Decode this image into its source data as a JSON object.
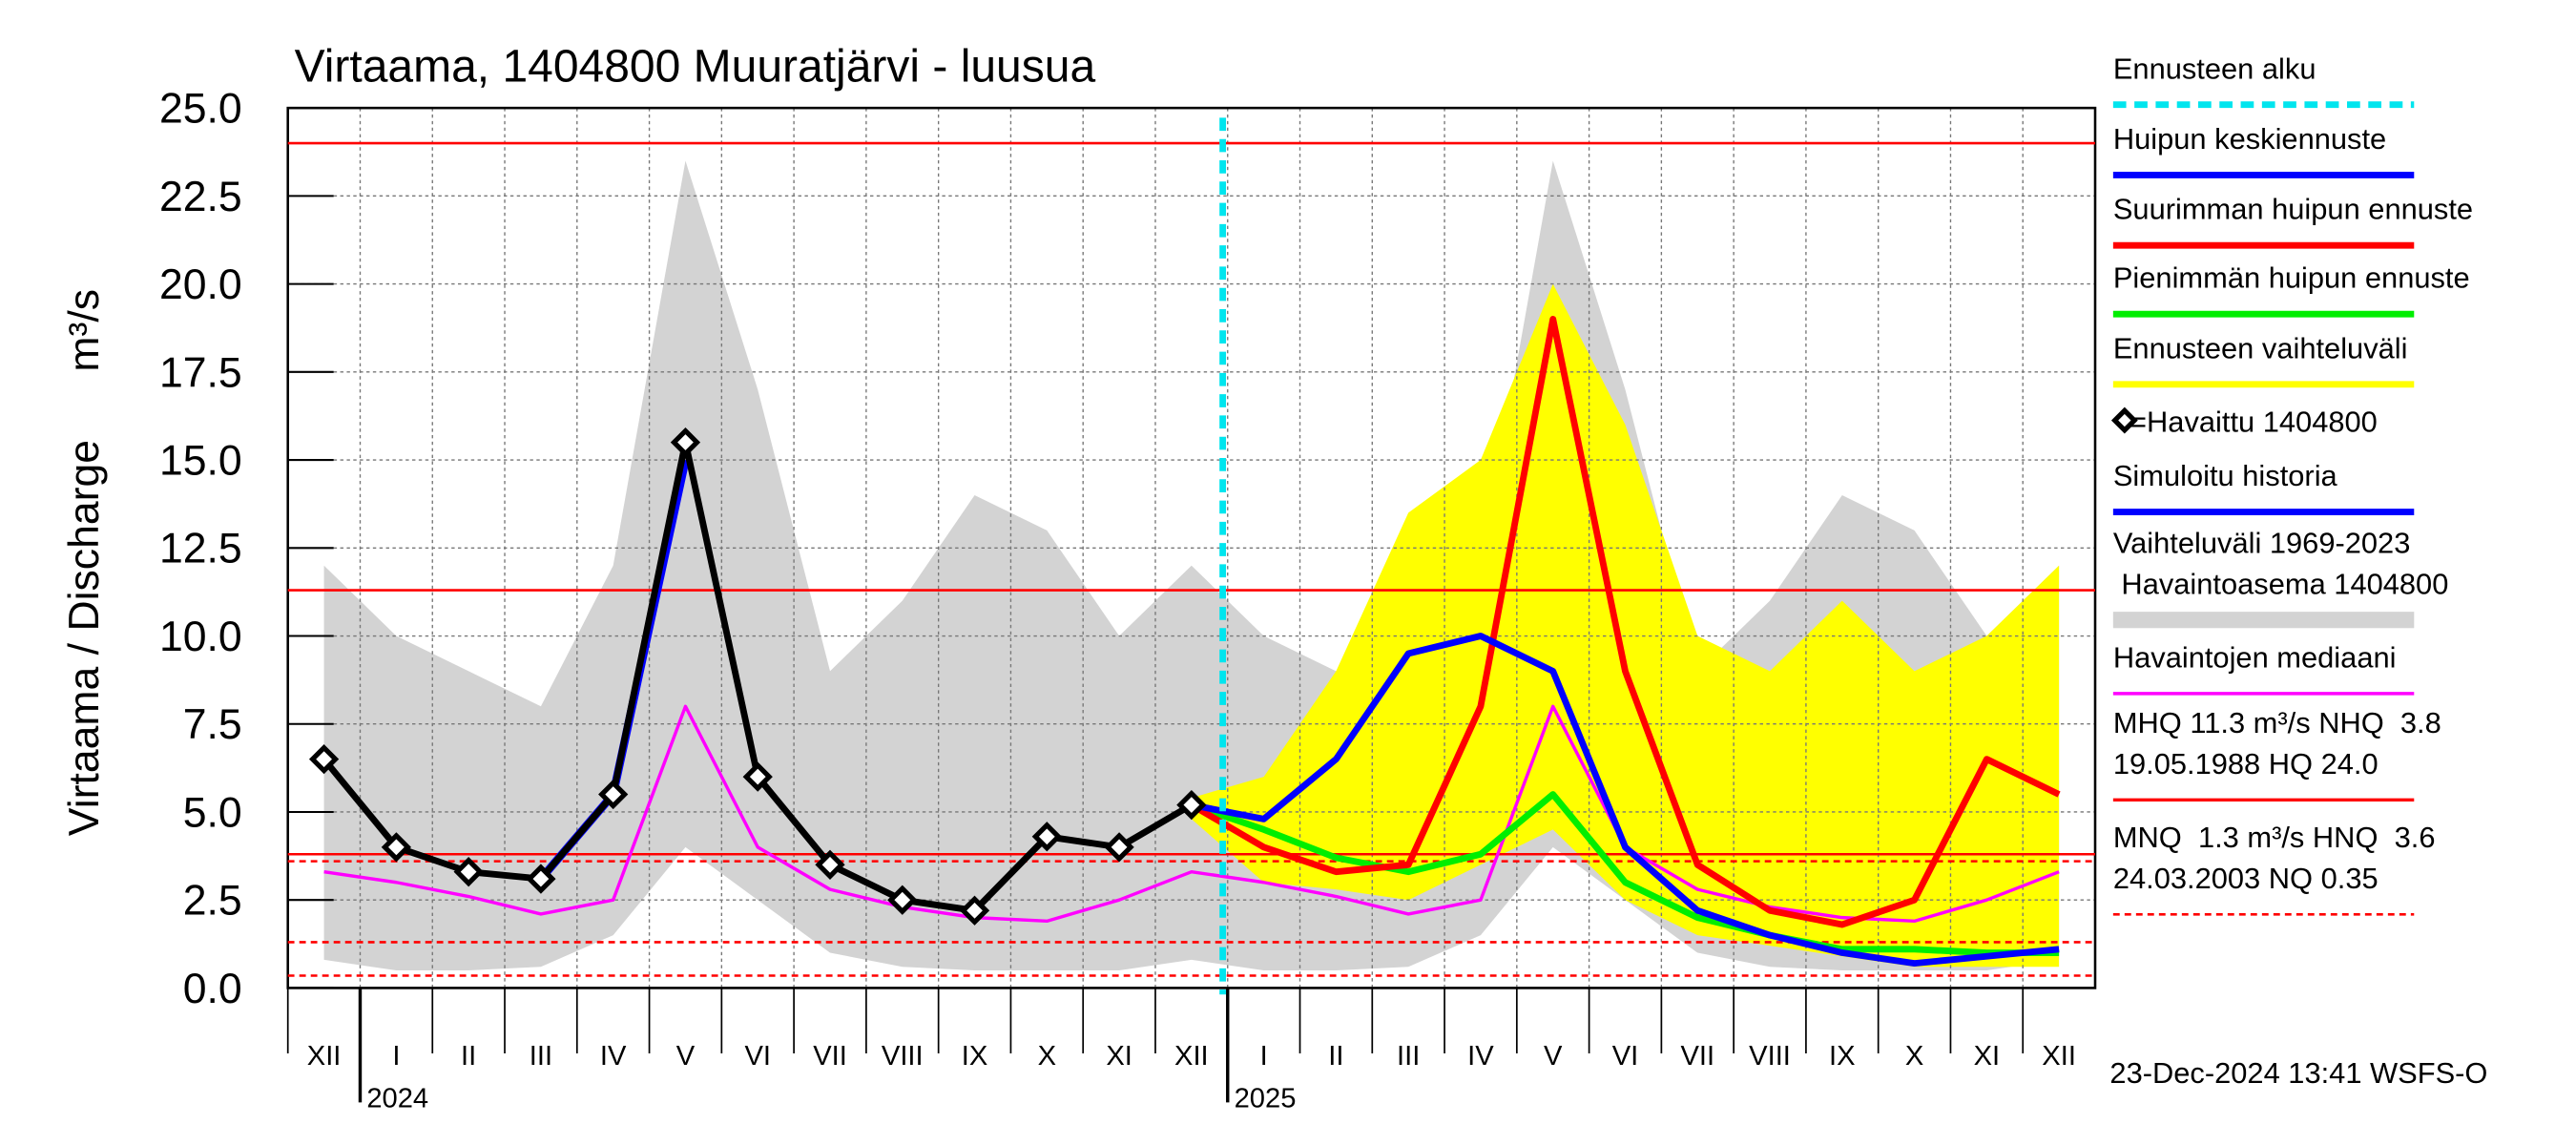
{
  "chart_data": {
    "type": "line",
    "title": "Virtaama, 1404800 Muuratjärvi - luusua",
    "y_label": "Virtaama / Discharge",
    "y_unit": "m³/s",
    "timestamp": "23-Dec-2024 13:41 WSFS-O",
    "categories": [
      "XII",
      "I",
      "II",
      "III",
      "IV",
      "V",
      "VI",
      "VII",
      "VIII",
      "IX",
      "X",
      "XI",
      "XII",
      "I",
      "II",
      "III",
      "IV",
      "V",
      "VI",
      "VII",
      "VIII",
      "IX",
      "X",
      "XI",
      "XII"
    ],
    "years": [
      "2024",
      "2025"
    ],
    "ylim": [
      0,
      25
    ],
    "yticks": [
      {
        "value": 0,
        "label": "0.0"
      },
      2.5,
      {
        "value": 5,
        "label": "5.0"
      },
      7.5,
      {
        "value": 10,
        "label": "10.0"
      },
      12.5,
      {
        "value": 15,
        "label": "15.0"
      },
      17.5,
      {
        "value": 20,
        "label": "20.0"
      },
      22.5,
      {
        "value": 25,
        "label": "25.0"
      }
    ],
    "grid": true,
    "legend_position": "right",
    "forecast_start": {
      "name": "Ennusteen alku",
      "color": "#00e5ee"
    },
    "bands": [
      {
        "name": "Ennusteen vaihteluväli",
        "color": "#ffff00",
        "low": [
          null,
          null,
          null,
          null,
          null,
          null,
          null,
          null,
          null,
          null,
          null,
          null,
          4.8,
          3.0,
          2.8,
          2.5,
          3.5,
          4.5,
          2.5,
          1.5,
          1.2,
          0.9,
          0.6,
          0.6,
          0.6
        ],
        "high": [
          null,
          null,
          null,
          null,
          null,
          null,
          null,
          null,
          null,
          null,
          null,
          null,
          5.4,
          6.0,
          9.0,
          13.5,
          15.0,
          20.0,
          16.0,
          10.0,
          9.0,
          11.0,
          9.0,
          10.0,
          12.0
        ]
      },
      {
        "name": [
          "Vaihteluväli 1969-2023",
          " Havaintoasema 1404800"
        ],
        "color": "#d3d3d3",
        "low": [
          0.8,
          0.5,
          0.5,
          0.6,
          1.5,
          4.0,
          2.5,
          1.0,
          0.6,
          0.5,
          0.5,
          0.5,
          0.8,
          0.5,
          0.5,
          0.6,
          1.5,
          4.0,
          2.5,
          1.0,
          0.6,
          0.5,
          0.5,
          0.5,
          0.8
        ],
        "high": [
          12,
          10,
          9,
          8,
          12,
          23.5,
          17,
          9,
          11,
          14,
          13,
          10,
          12,
          10,
          9,
          8,
          12,
          23.5,
          17,
          9,
          11,
          14,
          13,
          10,
          12
        ]
      }
    ],
    "series": [
      {
        "name": "Huipun keskiennuste",
        "color": "#0000ff",
        "values": [
          null,
          null,
          null,
          null,
          null,
          null,
          null,
          null,
          null,
          null,
          null,
          null,
          5.2,
          4.8,
          6.5,
          9.5,
          10.0,
          9.0,
          4.0,
          2.2,
          1.5,
          1.0,
          0.7,
          0.9,
          1.1
        ]
      },
      {
        "name": "Suurimman huipun ennuste",
        "color": "#ff0000",
        "values": [
          null,
          null,
          null,
          null,
          null,
          null,
          null,
          null,
          null,
          null,
          null,
          null,
          5.2,
          4.0,
          3.3,
          3.5,
          8.0,
          19.0,
          9.0,
          3.5,
          2.2,
          1.8,
          2.5,
          6.5,
          5.5
        ]
      },
      {
        "name": "Pienimmän huipun ennuste",
        "color": "#00ee00",
        "values": [
          null,
          null,
          null,
          null,
          null,
          null,
          null,
          null,
          null,
          null,
          null,
          null,
          5.2,
          4.5,
          3.7,
          3.3,
          3.8,
          5.5,
          3.0,
          2.0,
          1.5,
          1.1,
          1.1,
          1.0,
          1.0
        ]
      },
      {
        "name": "=Havaittu 1404800",
        "color": "#000000",
        "marker": "diamond",
        "values": [
          6.5,
          4.0,
          3.3,
          3.1,
          5.5,
          15.5,
          6.0,
          3.5,
          2.5,
          2.2,
          4.3,
          4.0,
          5.2,
          null,
          null,
          null,
          null,
          null,
          null,
          null,
          null,
          null,
          null,
          null,
          null
        ]
      },
      {
        "name": "Simuloitu historia",
        "color": "#0000ff",
        "values": [
          null,
          null,
          null,
          3.1,
          5.5,
          15.0,
          null,
          null,
          null,
          null,
          null,
          null,
          null,
          null,
          null,
          null,
          null,
          null,
          null,
          null,
          null,
          null,
          null,
          null,
          null
        ]
      },
      {
        "name": "Havaintojen mediaani",
        "color": "#ff00ff",
        "values": [
          3.3,
          3.0,
          2.6,
          2.1,
          2.5,
          8.0,
          4.0,
          2.8,
          2.3,
          2.0,
          1.9,
          2.5,
          3.3,
          3.0,
          2.6,
          2.1,
          2.5,
          8.0,
          4.0,
          2.8,
          2.3,
          2.0,
          1.9,
          2.5,
          3.3
        ]
      }
    ],
    "reference_lines": [
      {
        "value": 24.0,
        "color": "#ff0000",
        "dashed": false
      },
      {
        "value": 11.3,
        "color": "#ff0000",
        "dashed": false
      },
      {
        "value": 3.8,
        "color": "#ff0000",
        "dashed": false
      },
      {
        "value": 3.6,
        "color": "#ff0000",
        "dashed": true
      },
      {
        "value": 1.3,
        "color": "#ff0000",
        "dashed": true
      },
      {
        "value": 0.35,
        "color": "#ff0000",
        "dashed": true
      }
    ],
    "reference_notes": [
      {
        "lines": [
          "MHQ 11.3 m³/s NHQ  3.8",
          "19.05.1988 HQ 24.0"
        ],
        "color": "#ff0000",
        "dashed": false
      },
      {
        "lines": [
          "MNQ  1.3 m³/s HNQ  3.6",
          "24.03.2003 NQ 0.35"
        ],
        "color": "#ff0000",
        "dashed": true
      }
    ]
  }
}
